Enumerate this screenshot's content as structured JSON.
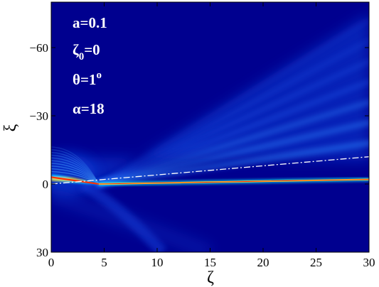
{
  "chart_data": {
    "type": "heatmap",
    "colormap": "jet",
    "xlabel": "ζ",
    "ylabel": "ξ",
    "xlim": [
      0,
      30
    ],
    "ylim": [
      30,
      -80
    ],
    "x_ticks": [
      0,
      5,
      10,
      15,
      20,
      25,
      30
    ],
    "x_tick_labels": [
      "0",
      "5",
      "10",
      "15",
      "20",
      "25",
      "30"
    ],
    "y_ticks": [
      30,
      0,
      -30,
      -60
    ],
    "y_tick_labels": [
      "30",
      "0",
      "−30",
      "−60"
    ],
    "annotations": [
      {
        "text": "a=0.1"
      },
      {
        "base": "ζ",
        "sub": "0",
        "rest": "=0"
      },
      {
        "base": "θ=1",
        "sup": "o"
      },
      {
        "text": "α=18"
      }
    ],
    "beam": {
      "initial_center_xi": -3,
      "reflection_zeta": 4.5,
      "transmitted_path": [
        [
          4.5,
          0
        ],
        [
          30,
          -2
        ]
      ]
    },
    "reference_line": {
      "style": "dash-dot",
      "color": "#ffffff",
      "points": [
        [
          0,
          0
        ],
        [
          30,
          -12
        ]
      ]
    },
    "fan_rays_xi_at_zeta30": [
      -18,
      -27,
      -36,
      -45,
      -54,
      -63,
      -72
    ]
  }
}
